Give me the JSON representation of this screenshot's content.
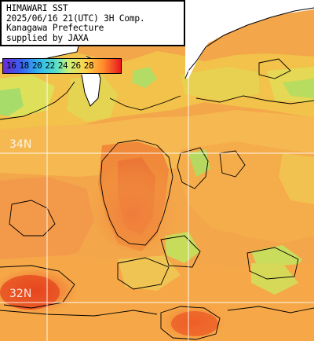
{
  "info": {
    "line1": "HIMAWARI SST",
    "line2": "2025/06/16 21(UTC) 3H Comp.",
    "line3": "Kanagawa Prefecture",
    "line4": "supplied by JAXA"
  },
  "legend": {
    "values": [
      "16",
      "18",
      "20",
      "22",
      "24",
      "26",
      "28"
    ],
    "colors": [
      "#6a2bd6",
      "#3a5ff0",
      "#2fb6ef",
      "#56e0c8",
      "#c8f07a",
      "#ff8a2a",
      "#e8181e"
    ]
  },
  "grid": {
    "lat_labels": [
      "34N",
      "32N"
    ]
  }
}
